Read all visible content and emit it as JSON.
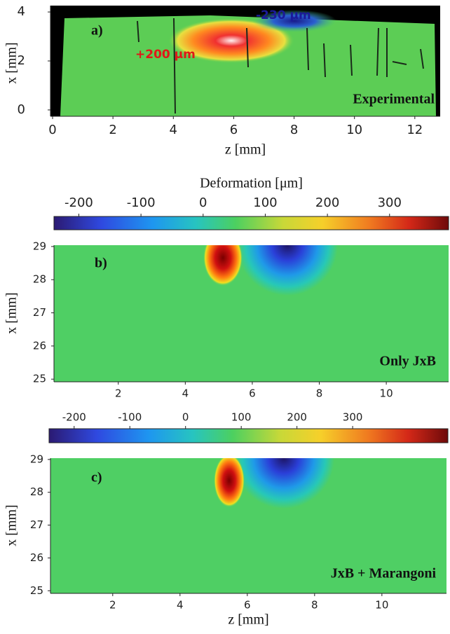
{
  "panels": [
    {
      "label": "a)",
      "annotation": "Experimental",
      "xlabel": "z [mm]",
      "ylabel": "x [mm]",
      "xlim": [
        -0.07,
        12.84
      ],
      "xticks": [
        0,
        2,
        4,
        6,
        8,
        10,
        12
      ],
      "ylim": [
        -0.26,
        4.26
      ],
      "yticks": [
        0,
        2,
        4
      ],
      "callouts": [
        "-230 μm",
        "+200 μm"
      ]
    },
    {
      "label": "b)",
      "annotation": "Only JxB",
      "ylabel": "x [mm]",
      "xlim": [
        0.08,
        11.86
      ],
      "xticks": [
        2,
        4,
        6,
        8,
        10
      ],
      "ylim": [
        24.92,
        29.04
      ],
      "yticks": [
        25,
        26,
        27,
        28,
        29
      ]
    },
    {
      "label": "c)",
      "annotation": "JxB + Marangoni",
      "xlabel": "z [mm]",
      "ylabel": "x [mm]",
      "xlim": [
        0.15,
        11.92
      ],
      "xticks": [
        2,
        4,
        6,
        8,
        10
      ],
      "ylim": [
        24.92,
        29.04
      ],
      "yticks": [
        25,
        26,
        27,
        28,
        29
      ]
    }
  ],
  "colorbars": [
    {
      "title": "Deformation [μm]",
      "lim": [
        -240,
        395
      ],
      "ticks": [
        -200,
        -100,
        0,
        100,
        200,
        300
      ]
    },
    {
      "lim": [
        -245,
        471
      ],
      "ticks": [
        -200,
        -100,
        0,
        100,
        200,
        300
      ]
    }
  ]
}
